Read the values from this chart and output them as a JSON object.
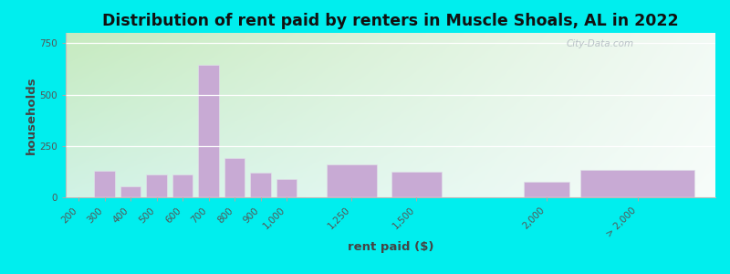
{
  "title": "Distribution of rent paid by renters in Muscle Shoals, AL in 2022",
  "xlabel": "rent paid ($)",
  "ylabel": "households",
  "bar_positions": [
    200,
    300,
    400,
    500,
    600,
    700,
    800,
    900,
    1000,
    1250,
    1500,
    2000,
    2350
  ],
  "bar_values": [
    0,
    130,
    55,
    110,
    110,
    645,
    190,
    120,
    90,
    160,
    125,
    75,
    135
  ],
  "bar_widths": [
    90,
    90,
    90,
    90,
    90,
    90,
    90,
    90,
    90,
    220,
    220,
    200,
    500
  ],
  "bar_color": "#c8aad4",
  "bar_edge_color": "#e0e0e8",
  "ylim": [
    0,
    800
  ],
  "yticks": [
    0,
    250,
    500,
    750
  ],
  "xlim": [
    150,
    2650
  ],
  "xtick_positions": [
    200,
    300,
    400,
    500,
    600,
    700,
    800,
    900,
    1000,
    1250,
    1500,
    2000,
    2350
  ],
  "xtick_labels": [
    "200",
    "300",
    "400",
    "500",
    "600",
    "700",
    "800",
    "900",
    "1,000",
    "1,250",
    "1,500",
    "2,000",
    "> 2,000"
  ],
  "bg_color_topleft": "#c8e8c0",
  "bg_color_right": "#f0f8f8",
  "outer_bg": "#00eeee",
  "title_fontsize": 12.5,
  "axis_label_fontsize": 9.5,
  "tick_fontsize": 7.5,
  "watermark_text": "City-Data.com"
}
